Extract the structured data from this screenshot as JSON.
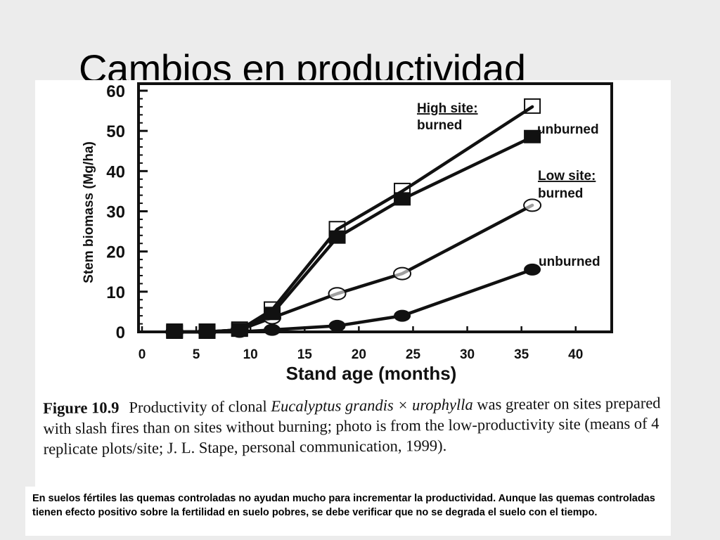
{
  "slide": {
    "title": "Cambios en productividad",
    "summary": "En suelos fértiles las quemas controladas no ayudan mucho para incrementar la productividad. Aunque las quemas controladas tienen efecto positivo sobre la fertilidad en suelo pobres, se debe verificar que no se degrada el suelo con el tiempo."
  },
  "figure": {
    "caption_number": "Figure 10.9",
    "caption_pre": "Productivity of clonal ",
    "caption_species": "Eucalyptus grandis × urophylla",
    "caption_post": " was greater on sites prepared with slash fires than on sites without burning; photo is from the low-productivity site (means of 4 replicate plots/site; J. L. Stape, personal communication, 1999)."
  },
  "chart_data": {
    "type": "line",
    "xlabel": "Stand age (months)",
    "ylabel": "Stem biomass (Mg/ha)",
    "xlim": [
      0,
      43
    ],
    "ylim": [
      0,
      60
    ],
    "xticks": [
      0,
      5,
      10,
      15,
      20,
      25,
      30,
      35,
      40
    ],
    "yticks": [
      0,
      10,
      20,
      30,
      40,
      50,
      60
    ],
    "legend_placement": "right, labels at line ends",
    "series": [
      {
        "site": "High site:",
        "treatment": "burned",
        "marker": "open-square",
        "color": "#111111",
        "x": [
          3,
          6,
          9,
          12,
          18,
          24,
          36
        ],
        "y": [
          0,
          0,
          0.5,
          5.5,
          25.5,
          35,
          56
        ]
      },
      {
        "treatment": "unburned",
        "marker": "filled-square",
        "color": "#111111",
        "x": [
          3,
          6,
          9,
          12,
          18,
          24,
          36
        ],
        "y": [
          0,
          0,
          0.5,
          4.5,
          23.5,
          33,
          48.5
        ]
      },
      {
        "site": "Low site:",
        "treatment": "burned",
        "marker": "open-circle",
        "color": "#111111",
        "x": [
          3,
          6,
          9,
          12,
          18,
          24,
          36
        ],
        "y": [
          0,
          0,
          0.5,
          3.5,
          9.5,
          14.5,
          31.5
        ]
      },
      {
        "treatment": "unburned",
        "marker": "filled-circle",
        "color": "#111111",
        "x": [
          3,
          6,
          9,
          12,
          18,
          24,
          36
        ],
        "y": [
          0,
          0,
          0,
          0.5,
          1.5,
          4,
          15.5
        ]
      }
    ]
  }
}
